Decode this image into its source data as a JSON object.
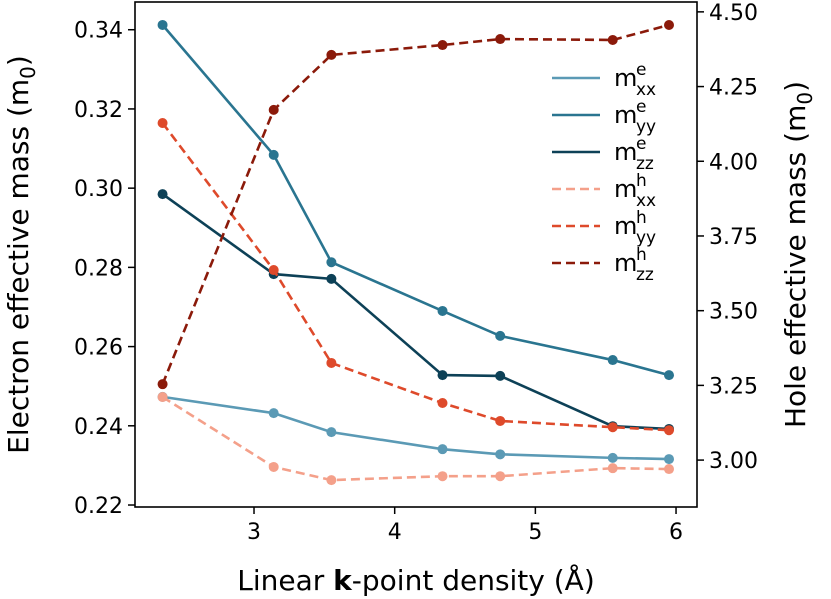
{
  "chart_data": {
    "type": "line",
    "x": [
      2.35,
      3.14,
      3.55,
      4.34,
      4.75,
      5.55,
      5.95
    ],
    "xlim": [
      2.154,
      6.149
    ],
    "xticks": [
      3,
      4,
      5,
      6
    ],
    "ylim": [
      0.2195,
      0.347
    ],
    "yticks": [
      {
        "value": 0.22,
        "label": "0.22"
      },
      {
        "value": 0.24,
        "label": "0.24"
      },
      {
        "value": 0.26,
        "label": "0.26"
      },
      {
        "value": 0.28,
        "label": "0.28"
      },
      {
        "value": 0.3,
        "label": "0.30"
      },
      {
        "value": 0.32,
        "label": "0.32"
      },
      {
        "value": 0.34,
        "label": "0.34"
      }
    ],
    "y2lim": [
      2.843,
      4.533
    ],
    "y2ticks": [
      {
        "value": 3.0,
        "label": "3.00"
      },
      {
        "value": 3.25,
        "label": "3.25"
      },
      {
        "value": 3.5,
        "label": "3.50"
      },
      {
        "value": 3.75,
        "label": "3.75"
      },
      {
        "value": 4.0,
        "label": "4.00"
      },
      {
        "value": 4.25,
        "label": "4.25"
      },
      {
        "value": 4.5,
        "label": "4.50"
      }
    ],
    "xlabel": [
      {
        "text": "Linear "
      },
      {
        "text": "k",
        "bold": true
      },
      {
        "text": "-point density (Å)"
      }
    ],
    "ylabel": [
      {
        "text": "Electron effective mass (m"
      },
      {
        "text": "0",
        "sub": true
      },
      {
        "text": ")"
      }
    ],
    "y2label": [
      {
        "text": "Hole effective mass (m"
      },
      {
        "text": "0",
        "sub": true
      },
      {
        "text": ")"
      }
    ],
    "legend": "upper right",
    "series": [
      {
        "name": {
          "base": "m",
          "sup": "e",
          "sub": "xx"
        },
        "color": "#5b9ab5",
        "linestyle": "solid",
        "values": [
          0.2473,
          0.2432,
          0.2384,
          0.2341,
          0.2328,
          0.2319,
          0.2316
        ]
      },
      {
        "name": {
          "base": "m",
          "sup": "e",
          "sub": "yy"
        },
        "color": "#2a7590",
        "linestyle": "solid",
        "values": [
          0.3412,
          0.3084,
          0.2813,
          0.269,
          0.2627,
          0.2566,
          0.2528
        ]
      },
      {
        "name": {
          "base": "m",
          "sup": "e",
          "sub": "zz"
        },
        "color": "#0d4157",
        "linestyle": "solid",
        "values": [
          0.2985,
          0.2783,
          0.2771,
          0.2528,
          0.2526,
          0.2399,
          0.2392
        ]
      },
      {
        "name": {
          "base": "m",
          "sup": "h",
          "sub": "xx"
        },
        "color": "#f4a08a",
        "linestyle": "dashed",
        "axis": "y2",
        "values": [
          3.211,
          2.977,
          2.933,
          2.946,
          2.946,
          2.973,
          2.97
        ]
      },
      {
        "name": {
          "base": "m",
          "sup": "h",
          "sub": "yy"
        },
        "color": "#de4a2b",
        "linestyle": "dashed",
        "axis": "y2",
        "values": [
          4.128,
          3.636,
          3.325,
          3.191,
          3.131,
          3.11,
          3.1
        ]
      },
      {
        "name": {
          "base": "m",
          "sup": "h",
          "sub": "zz"
        },
        "color": "#8b1a0a",
        "linestyle": "dashed",
        "axis": "y2",
        "values": [
          3.254,
          4.172,
          4.356,
          4.389,
          4.409,
          4.406,
          4.456
        ]
      }
    ]
  }
}
